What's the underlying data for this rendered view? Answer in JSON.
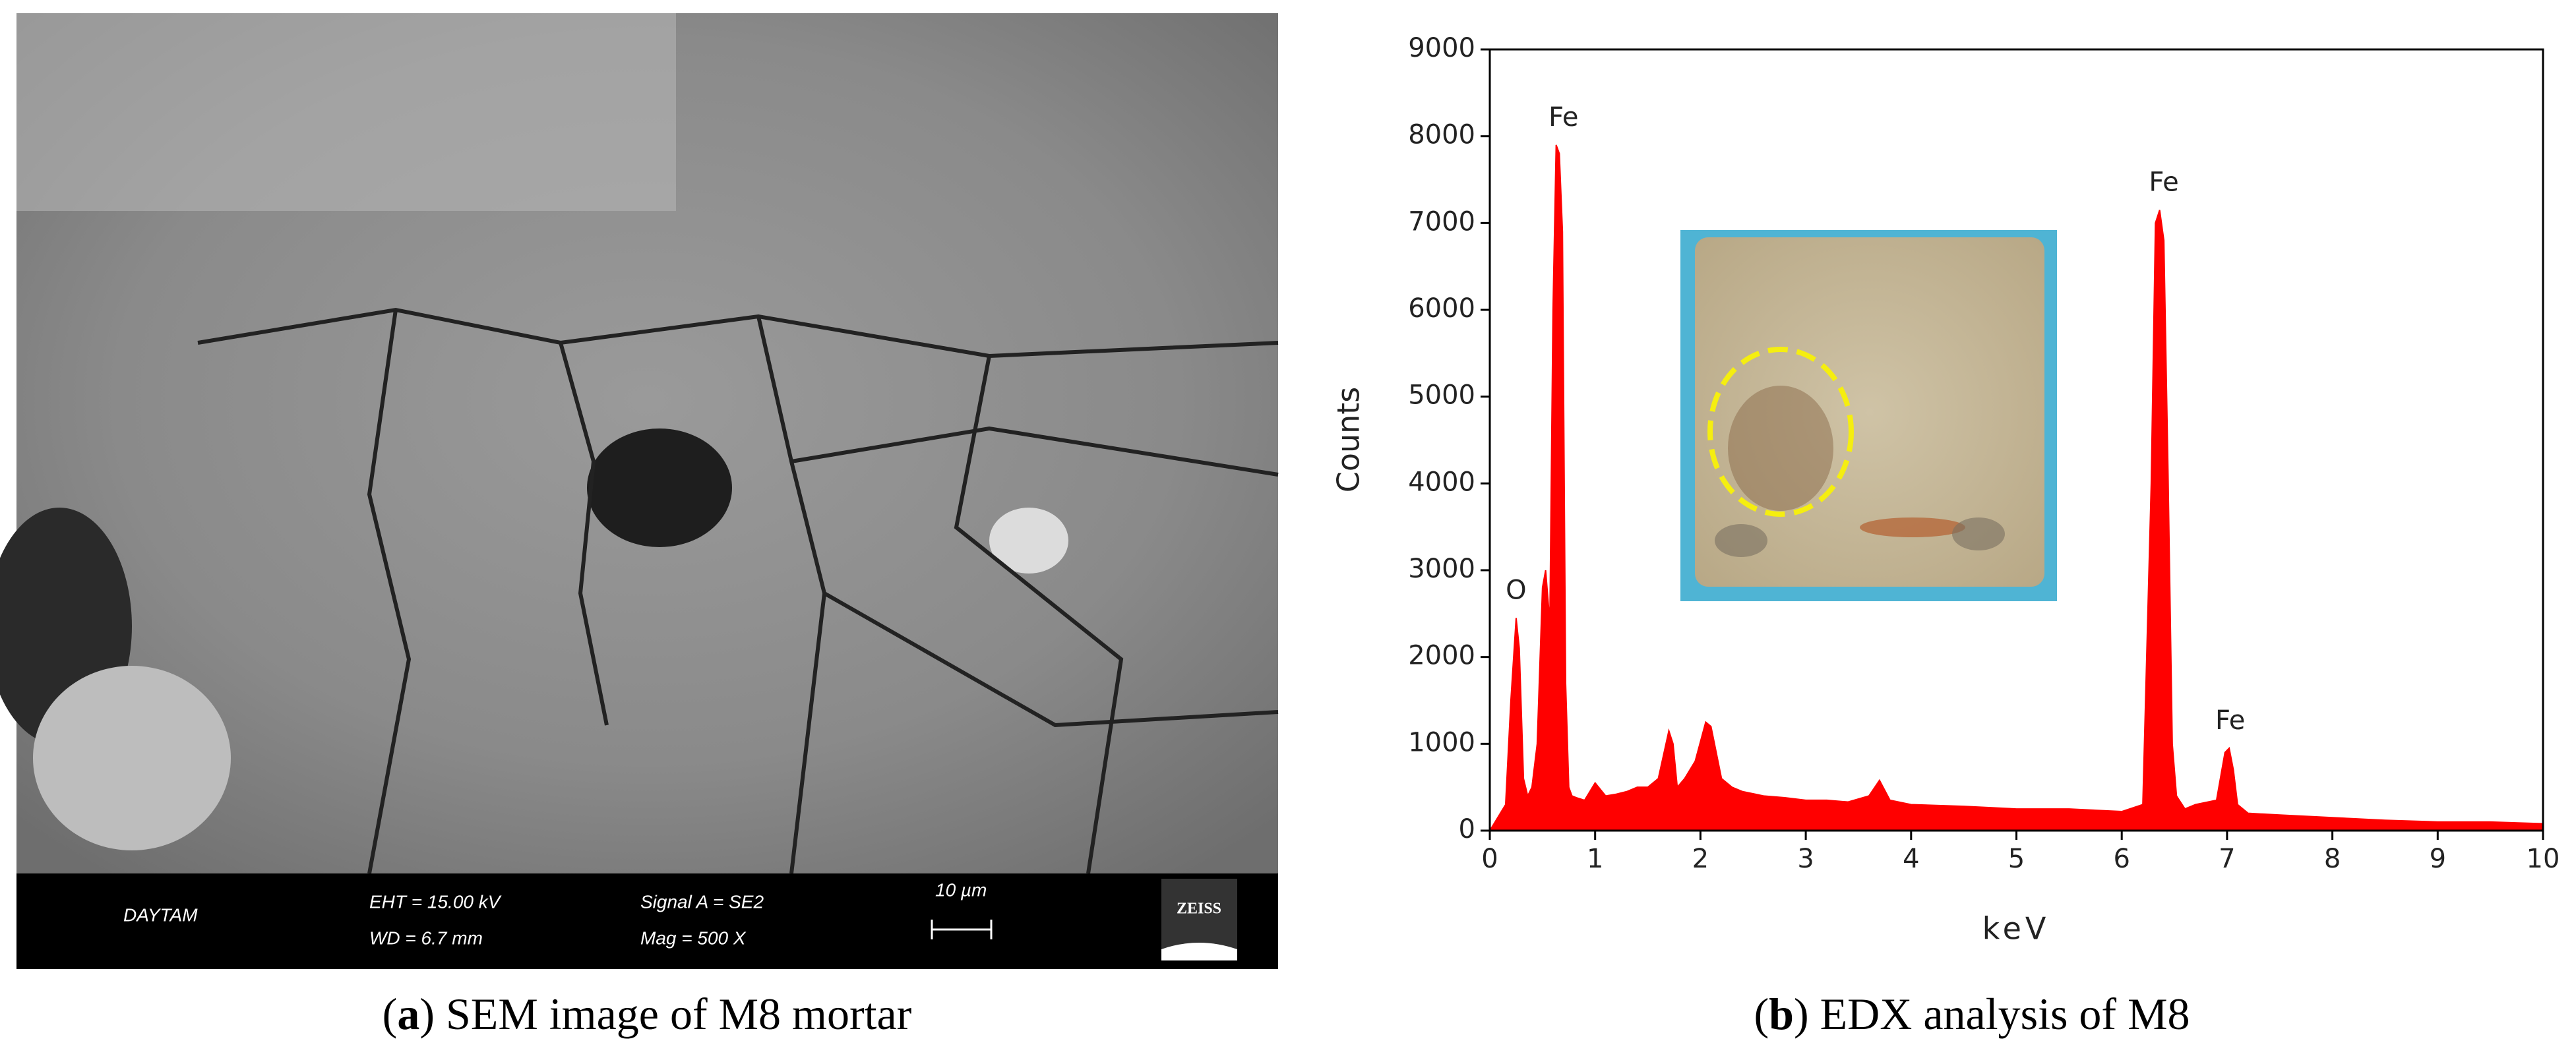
{
  "sem_panel": {
    "info": {
      "lab": "DAYTAM",
      "eht": "EHT = 15.00 kV",
      "wd": "WD =  6.7 mm",
      "signal": "Signal A = SE2",
      "mag": "Mag =    500 X",
      "scale": "10 µm",
      "logo": "ZEISS"
    },
    "caption": [
      "(",
      "a",
      ") SEM image of M8 mortar"
    ]
  },
  "edx_caption": [
    "(",
    "b",
    ") EDX analysis of M8"
  ],
  "chart_data": {
    "type": "area",
    "xlabel": "keV",
    "ylabel": "Counts",
    "color": "#ff0000",
    "x": [
      0,
      0.05,
      0.1,
      0.15,
      0.2,
      0.25,
      0.28,
      0.32,
      0.36,
      0.4,
      0.45,
      0.5,
      0.53,
      0.57,
      0.6,
      0.63,
      0.66,
      0.69,
      0.72,
      0.75,
      0.78,
      0.82,
      0.9,
      1.0,
      1.1,
      1.2,
      1.3,
      1.4,
      1.5,
      1.6,
      1.7,
      1.74,
      1.78,
      1.85,
      1.95,
      2.05,
      2.1,
      2.15,
      2.2,
      2.3,
      2.4,
      2.6,
      2.8,
      3.0,
      3.2,
      3.4,
      3.6,
      3.7,
      3.8,
      4.0,
      4.5,
      5.0,
      5.5,
      6.0,
      6.2,
      6.28,
      6.32,
      6.36,
      6.4,
      6.44,
      6.48,
      6.52,
      6.6,
      6.7,
      6.9,
      6.98,
      7.02,
      7.06,
      7.1,
      7.2,
      7.5,
      8.0,
      8.5,
      9.0,
      9.5,
      10.0
    ],
    "values": [
      0,
      100,
      200,
      300,
      1500,
      2450,
      2100,
      600,
      400,
      500,
      1000,
      2800,
      3000,
      2400,
      6000,
      7900,
      7800,
      6900,
      1700,
      500,
      400,
      380,
      350,
      550,
      400,
      420,
      450,
      500,
      500,
      600,
      1150,
      1000,
      500,
      600,
      800,
      1250,
      1200,
      900,
      600,
      500,
      450,
      400,
      380,
      350,
      350,
      330,
      400,
      580,
      350,
      300,
      280,
      250,
      250,
      220,
      300,
      4000,
      7000,
      7150,
      6800,
      4100,
      1000,
      400,
      250,
      300,
      350,
      900,
      950,
      700,
      300,
      200,
      180,
      150,
      120,
      100,
      100,
      80
    ],
    "xlim": [
      0,
      10
    ],
    "xticks": [
      0,
      1,
      2,
      3,
      4,
      5,
      6,
      7,
      8,
      9,
      10
    ],
    "ylim": [
      0,
      9000
    ],
    "yticks": [
      0,
      1000,
      2000,
      3000,
      4000,
      5000,
      6000,
      7000,
      8000,
      9000
    ],
    "annotations": [
      {
        "text": "O",
        "x": 0.25,
        "y": 2450
      },
      {
        "text": "Fe",
        "x": 0.7,
        "y": 7900
      },
      {
        "text": "Fe",
        "x": 6.4,
        "y": 7150
      },
      {
        "text": "Fe",
        "x": 7.03,
        "y": 950
      }
    ]
  }
}
